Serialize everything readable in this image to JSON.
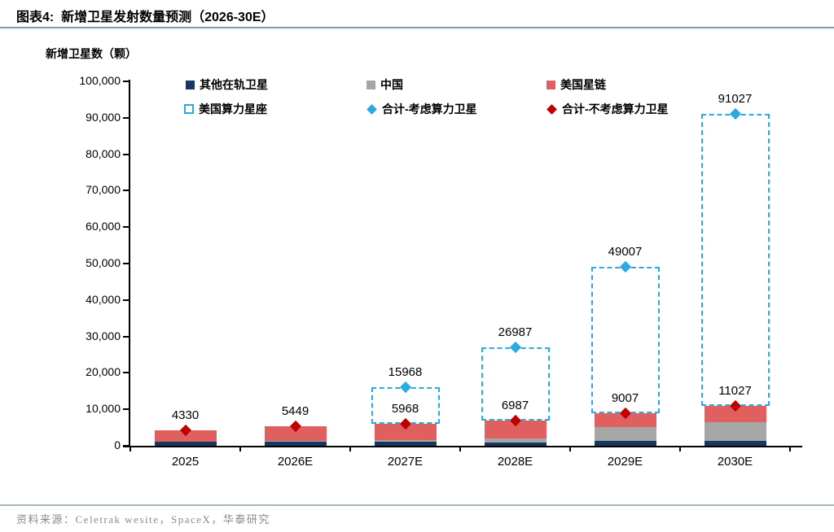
{
  "header": {
    "title": "图表4:  新增卫星发射数量预测（2026-30E）"
  },
  "axis_title": "新增卫星数（颗）",
  "legend": {
    "items": [
      {
        "label": "其他在轨卫星",
        "marker": "square",
        "color": "#17375E"
      },
      {
        "label": "中国",
        "marker": "square",
        "color": "#A6A6A6"
      },
      {
        "label": "美国星链",
        "marker": "square",
        "color": "#E05F5F"
      },
      {
        "label": "美国算力星座",
        "marker": "dashed-box",
        "color": "#29ABE2"
      },
      {
        "label": "合计-考虑算力卫星",
        "marker": "diamond",
        "color": "#29ABE2"
      },
      {
        "label": "合计-不考虑算力卫星",
        "marker": "diamond",
        "color": "#C00000"
      }
    ]
  },
  "chart_data": {
    "type": "bar",
    "stacked": true,
    "title": "新增卫星发射数量预测（2026-30E）",
    "ylabel": "新增卫星数（颗）",
    "xlabel": "",
    "categories": [
      "2025",
      "2026E",
      "2027E",
      "2028E",
      "2029E",
      "2030E"
    ],
    "series": [
      {
        "name": "其他在轨卫星",
        "color": "#17375E",
        "estimated": true,
        "values": [
          1030,
          1049,
          1068,
          1000,
          1300,
          1300
        ]
      },
      {
        "name": "中国",
        "color": "#A6A6A6",
        "estimated": true,
        "values": [
          0,
          300,
          450,
          1100,
          3800,
          5100
        ]
      },
      {
        "name": "美国星链",
        "color": "#E05F5F",
        "estimated": true,
        "values": [
          3300,
          4100,
          4450,
          4887,
          3907,
          4627
        ]
      },
      {
        "name": "美国算力星座",
        "color": "#29ABE2",
        "style": "dashed-outline",
        "values": [
          0,
          0,
          10000,
          20000,
          40000,
          80000
        ]
      }
    ],
    "markers": [
      {
        "name": "合计-不考虑算力卫星",
        "shape": "diamond",
        "color": "#C00000",
        "values": [
          4330,
          5449,
          5968,
          6987,
          9007,
          11027
        ]
      },
      {
        "name": "合计-考虑算力卫星",
        "shape": "diamond",
        "color": "#29ABE2",
        "values": [
          null,
          null,
          15968,
          26987,
          49007,
          91027
        ]
      }
    ],
    "labels_no_compute": [
      "4330",
      "5449",
      "5968",
      "6987",
      "9007",
      "11027"
    ],
    "labels_with_compute": [
      null,
      null,
      "15968",
      "26987",
      "49007",
      "91027"
    ],
    "ylim": [
      0,
      100000
    ],
    "y_ticks": [
      "0",
      "10,000",
      "20,000",
      "30,000",
      "40,000",
      "50,000",
      "60,000",
      "70,000",
      "80,000",
      "90,000",
      "100,000"
    ],
    "grid": false,
    "legend_position": "top"
  },
  "source": "资料来源：Celetrak wesite，SpaceX，华泰研究"
}
